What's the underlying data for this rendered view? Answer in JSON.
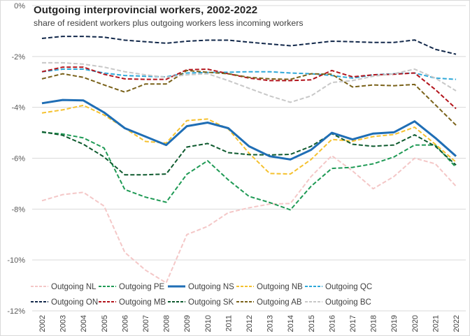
{
  "chart_data": {
    "type": "line",
    "title": "Outgoing interprovincial  workers, 2002-2022",
    "subtitle": "share of resident workers plus outgoing workers less incoming workers",
    "xlabel": "",
    "ylabel": "",
    "x": [
      "2002",
      "2003",
      "2004",
      "2005",
      "2006",
      "2007",
      "2008",
      "2009",
      "2010",
      "2011",
      "2012",
      "2013",
      "2014",
      "2015",
      "2016",
      "2017",
      "2018",
      "2019",
      "2020",
      "2021",
      "2022"
    ],
    "ylim": [
      -12,
      0
    ],
    "yticks": [
      0,
      -2,
      -4,
      -6,
      -8,
      -10,
      -12
    ],
    "ytick_labels": [
      "0%",
      "-2%",
      "-4%",
      "-6%",
      "-8%",
      "-10%",
      "-12%"
    ],
    "grid": true,
    "legend_position": "bottom",
    "series": [
      {
        "name": "Outgoing NL",
        "color": "#f4c7c7",
        "style": "dash",
        "values": [
          -7.67,
          -7.43,
          -7.34,
          -7.88,
          -9.7,
          -10.4,
          -10.9,
          -9.0,
          -8.68,
          -8.14,
          -7.95,
          -7.8,
          -7.78,
          -6.72,
          -5.9,
          -6.5,
          -7.2,
          -6.72,
          -6.0,
          -6.22,
          -7.1
        ]
      },
      {
        "name": "Outgoing PE",
        "color": "#1f9a55",
        "style": "dash",
        "values": [
          -4.98,
          -5.05,
          -5.2,
          -5.6,
          -7.23,
          -7.53,
          -7.73,
          -6.63,
          -6.1,
          -6.85,
          -7.5,
          -7.74,
          -8.03,
          -7.1,
          -6.4,
          -6.36,
          -6.22,
          -5.95,
          -5.48,
          -5.48,
          -6.36
        ]
      },
      {
        "name": "Outgoing NS",
        "color": "#1f6eb5",
        "style": "solid",
        "values": [
          -3.84,
          -3.71,
          -3.73,
          -4.2,
          -4.82,
          -5.15,
          -5.48,
          -4.74,
          -4.6,
          -4.82,
          -5.53,
          -5.92,
          -6.05,
          -5.67,
          -5.0,
          -5.26,
          -5.03,
          -4.98,
          -4.55,
          -5.2,
          -5.92
        ]
      },
      {
        "name": "Outgoing NB",
        "color": "#f5c12e",
        "style": "dash",
        "values": [
          -4.22,
          -4.1,
          -3.92,
          -4.3,
          -4.82,
          -5.34,
          -5.4,
          -4.52,
          -4.46,
          -4.85,
          -5.8,
          -6.6,
          -6.62,
          -6.05,
          -5.26,
          -5.33,
          -5.15,
          -5.07,
          -4.78,
          -5.45,
          -6.15
        ]
      },
      {
        "name": "Outgoing QC",
        "color": "#2ea8d8",
        "style": "dash",
        "values": [
          -2.6,
          -2.5,
          -2.5,
          -2.65,
          -2.75,
          -2.78,
          -2.8,
          -2.65,
          -2.63,
          -2.62,
          -2.6,
          -2.6,
          -2.65,
          -2.68,
          -2.75,
          -2.85,
          -2.72,
          -2.68,
          -2.65,
          -2.85,
          -2.9
        ]
      },
      {
        "name": "Outgoing ON",
        "color": "#13294b",
        "style": "dash",
        "values": [
          -1.29,
          -1.21,
          -1.21,
          -1.24,
          -1.36,
          -1.42,
          -1.48,
          -1.4,
          -1.36,
          -1.36,
          -1.44,
          -1.51,
          -1.58,
          -1.49,
          -1.4,
          -1.42,
          -1.45,
          -1.45,
          -1.35,
          -1.72,
          -1.91
        ]
      },
      {
        "name": "Outgoing MB",
        "color": "#b3141c",
        "style": "dash",
        "values": [
          -2.6,
          -2.42,
          -2.42,
          -2.7,
          -2.88,
          -2.9,
          -2.9,
          -2.52,
          -2.5,
          -2.68,
          -2.85,
          -2.95,
          -2.95,
          -2.92,
          -2.55,
          -2.8,
          -2.72,
          -2.7,
          -2.65,
          -3.3,
          -4.05
        ]
      },
      {
        "name": "Outgoing SK",
        "color": "#0e5a2e",
        "style": "dash",
        "values": [
          -4.96,
          -5.1,
          -5.45,
          -5.95,
          -6.65,
          -6.65,
          -6.62,
          -5.56,
          -5.42,
          -5.78,
          -5.86,
          -5.87,
          -5.85,
          -5.53,
          -5.03,
          -5.45,
          -5.53,
          -5.48,
          -5.08,
          -5.53,
          -6.27
        ]
      },
      {
        "name": "Outgoing AB",
        "color": "#7a621a",
        "style": "dash",
        "values": [
          -2.88,
          -2.68,
          -2.82,
          -3.12,
          -3.4,
          -3.08,
          -3.08,
          -2.55,
          -2.62,
          -2.68,
          -2.82,
          -2.88,
          -2.9,
          -2.68,
          -2.7,
          -3.2,
          -3.12,
          -3.15,
          -3.1,
          -3.9,
          -4.7
        ]
      },
      {
        "name": "Outgoing BC",
        "color": "#c8c8c8",
        "style": "dash",
        "values": [
          -2.25,
          -2.25,
          -2.3,
          -2.42,
          -2.6,
          -2.72,
          -2.82,
          -2.72,
          -2.68,
          -2.95,
          -3.25,
          -3.55,
          -3.8,
          -3.55,
          -3.02,
          -2.95,
          -2.78,
          -2.68,
          -2.5,
          -2.85,
          -3.35
        ]
      }
    ]
  }
}
